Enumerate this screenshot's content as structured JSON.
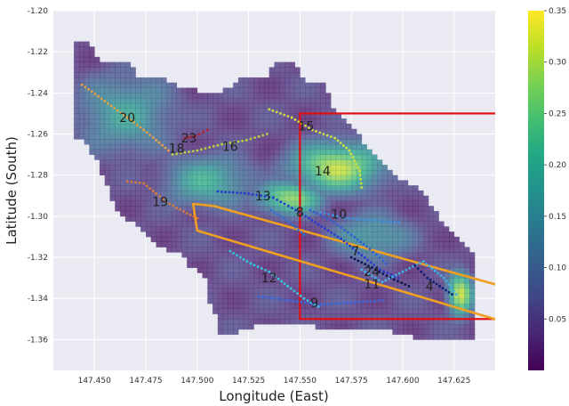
{
  "chart_data": {
    "type": "heatmap",
    "xlabel": "Longitude (East)",
    "ylabel": "Latitude (South)",
    "xlim": [
      147.43,
      147.645
    ],
    "ylim": [
      -1.375,
      -1.2
    ],
    "x_ticks": [
      "147.450",
      "147.475",
      "147.500",
      "147.525",
      "147.550",
      "147.575",
      "147.600",
      "147.625"
    ],
    "x_tick_values": [
      147.45,
      147.475,
      147.5,
      147.525,
      147.55,
      147.575,
      147.6,
      147.625
    ],
    "y_ticks": [
      "-1.20",
      "-1.22",
      "-1.24",
      "-1.26",
      "-1.28",
      "-1.30",
      "-1.32",
      "-1.34",
      "-1.36"
    ],
    "y_tick_values": [
      -1.2,
      -1.22,
      -1.24,
      -1.26,
      -1.28,
      -1.3,
      -1.32,
      -1.34,
      -1.36
    ],
    "colorbar": {
      "colormap": "viridis",
      "range": [
        0,
        0.35
      ],
      "ticks": [
        "0.05",
        "0.10",
        "0.15",
        "0.20",
        "0.25",
        "0.30",
        "0.35"
      ],
      "tick_values": [
        0.05,
        0.1,
        0.15,
        0.2,
        0.25,
        0.3,
        0.35
      ]
    },
    "grid": true,
    "hotspots": [
      {
        "lon": 147.568,
        "lat": -1.276,
        "rx": 0.022,
        "ry": 0.012,
        "value": 0.31
      },
      {
        "lon": 147.545,
        "lat": -1.291,
        "rx": 0.016,
        "ry": 0.008,
        "value": 0.28
      },
      {
        "lon": 147.628,
        "lat": -1.338,
        "rx": 0.006,
        "ry": 0.01,
        "value": 0.33
      },
      {
        "lon": 147.505,
        "lat": -1.283,
        "rx": 0.022,
        "ry": 0.013,
        "value": 0.2
      },
      {
        "lon": 147.465,
        "lat": -1.25,
        "rx": 0.024,
        "ry": 0.02,
        "value": 0.18
      },
      {
        "lon": 147.585,
        "lat": -1.31,
        "rx": 0.02,
        "ry": 0.012,
        "value": 0.17
      }
    ],
    "zone_labels": [
      {
        "text": "20",
        "lon": 147.466,
        "lat": -1.252
      },
      {
        "text": "23",
        "lon": 147.496,
        "lat": -1.262
      },
      {
        "text": "18",
        "lon": 147.49,
        "lat": -1.267
      },
      {
        "text": "16",
        "lon": 147.516,
        "lat": -1.266
      },
      {
        "text": "15",
        "lon": 147.553,
        "lat": -1.256
      },
      {
        "text": "14",
        "lon": 147.561,
        "lat": -1.278
      },
      {
        "text": "19",
        "lon": 147.482,
        "lat": -1.293
      },
      {
        "text": "13",
        "lon": 147.532,
        "lat": -1.29
      },
      {
        "text": "8",
        "lon": 147.55,
        "lat": -1.298
      },
      {
        "text": "10",
        "lon": 147.569,
        "lat": -1.299
      },
      {
        "text": "7",
        "lon": 147.577,
        "lat": -1.317
      },
      {
        "text": "24",
        "lon": 147.585,
        "lat": -1.327
      },
      {
        "text": "11",
        "lon": 147.585,
        "lat": -1.333
      },
      {
        "text": "4",
        "lon": 147.613,
        "lat": -1.334
      },
      {
        "text": "12",
        "lon": 147.535,
        "lat": -1.33
      },
      {
        "text": "9",
        "lon": 147.557,
        "lat": -1.342
      }
    ],
    "red_rectangle": {
      "lon_min": 147.55,
      "lon_max": 147.66,
      "lat_min": -1.35,
      "lat_max": -1.25
    },
    "orange_polygon": [
      [
        147.498,
        -1.294
      ],
      [
        147.508,
        -1.295
      ],
      [
        147.648,
        -1.334
      ],
      [
        147.648,
        -1.351
      ],
      [
        147.598,
        -1.336
      ],
      [
        147.5,
        -1.307
      ]
    ],
    "tracks": [
      {
        "color": "#e8a040",
        "points": [
          [
            147.444,
            -1.236
          ],
          [
            147.455,
            -1.244
          ],
          [
            147.466,
            -1.252
          ],
          [
            147.474,
            -1.258
          ],
          [
            147.48,
            -1.263
          ],
          [
            147.486,
            -1.268
          ]
        ]
      },
      {
        "color": "#d87a38",
        "points": [
          [
            147.466,
            -1.283
          ],
          [
            147.474,
            -1.284
          ],
          [
            147.48,
            -1.289
          ],
          [
            147.485,
            -1.293
          ],
          [
            147.49,
            -1.296
          ],
          [
            147.5,
            -1.301
          ]
        ]
      },
      {
        "color": "#b8d040",
        "points": [
          [
            147.488,
            -1.27
          ],
          [
            147.5,
            -1.268
          ],
          [
            147.512,
            -1.265
          ],
          [
            147.524,
            -1.263
          ],
          [
            147.534,
            -1.26
          ]
        ]
      },
      {
        "color": "#c02020",
        "points": [
          [
            147.494,
            -1.262
          ],
          [
            147.499,
            -1.261
          ],
          [
            147.505,
            -1.258
          ]
        ]
      },
      {
        "color": "#d0e040",
        "points": [
          [
            147.535,
            -1.248
          ],
          [
            147.546,
            -1.252
          ],
          [
            147.556,
            -1.258
          ],
          [
            147.567,
            -1.262
          ],
          [
            147.574,
            -1.268
          ],
          [
            147.579,
            -1.278
          ],
          [
            147.58,
            -1.286
          ]
        ]
      },
      {
        "color": "#283ad0",
        "points": [
          [
            147.51,
            -1.288
          ],
          [
            147.525,
            -1.289
          ],
          [
            147.537,
            -1.291
          ],
          [
            147.548,
            -1.297
          ],
          [
            147.559,
            -1.304
          ],
          [
            147.57,
            -1.311
          ],
          [
            147.58,
            -1.319
          ],
          [
            147.589,
            -1.326
          ],
          [
            147.598,
            -1.33
          ]
        ]
      },
      {
        "color": "#3060d8",
        "points": [
          [
            147.555,
            -1.297
          ],
          [
            147.565,
            -1.302
          ],
          [
            147.575,
            -1.309
          ],
          [
            147.584,
            -1.316
          ],
          [
            147.592,
            -1.323
          ]
        ]
      },
      {
        "color": "#4090e0",
        "points": [
          [
            147.56,
            -1.298
          ],
          [
            147.572,
            -1.301
          ],
          [
            147.585,
            -1.302
          ],
          [
            147.598,
            -1.303
          ]
        ]
      },
      {
        "color": "#0a1450",
        "points": [
          [
            147.575,
            -1.32
          ],
          [
            147.585,
            -1.325
          ],
          [
            147.594,
            -1.33
          ],
          [
            147.603,
            -1.334
          ]
        ]
      },
      {
        "color": "#34c8e0",
        "points": [
          [
            147.516,
            -1.317
          ],
          [
            147.526,
            -1.323
          ],
          [
            147.535,
            -1.327
          ],
          [
            147.544,
            -1.334
          ],
          [
            147.552,
            -1.34
          ],
          [
            147.559,
            -1.344
          ]
        ]
      },
      {
        "color": "#3868e0",
        "points": [
          [
            147.53,
            -1.339
          ],
          [
            147.545,
            -1.341
          ],
          [
            147.56,
            -1.343
          ],
          [
            147.575,
            -1.342
          ],
          [
            147.59,
            -1.341
          ]
        ]
      },
      {
        "color": "#40b0e8",
        "points": [
          [
            147.58,
            -1.326
          ],
          [
            147.59,
            -1.332
          ],
          [
            147.6,
            -1.327
          ],
          [
            147.61,
            -1.322
          ],
          [
            147.62,
            -1.33
          ],
          [
            147.626,
            -1.338
          ]
        ]
      },
      {
        "color": "#101e78",
        "points": [
          [
            147.606,
            -1.324
          ],
          [
            147.612,
            -1.33
          ],
          [
            147.618,
            -1.334
          ],
          [
            147.624,
            -1.338
          ]
        ]
      },
      {
        "color": "#3070d0",
        "points": [
          [
            147.536,
            -1.297
          ],
          [
            147.545,
            -1.303
          ],
          [
            147.552,
            -1.309
          ]
        ]
      }
    ]
  }
}
